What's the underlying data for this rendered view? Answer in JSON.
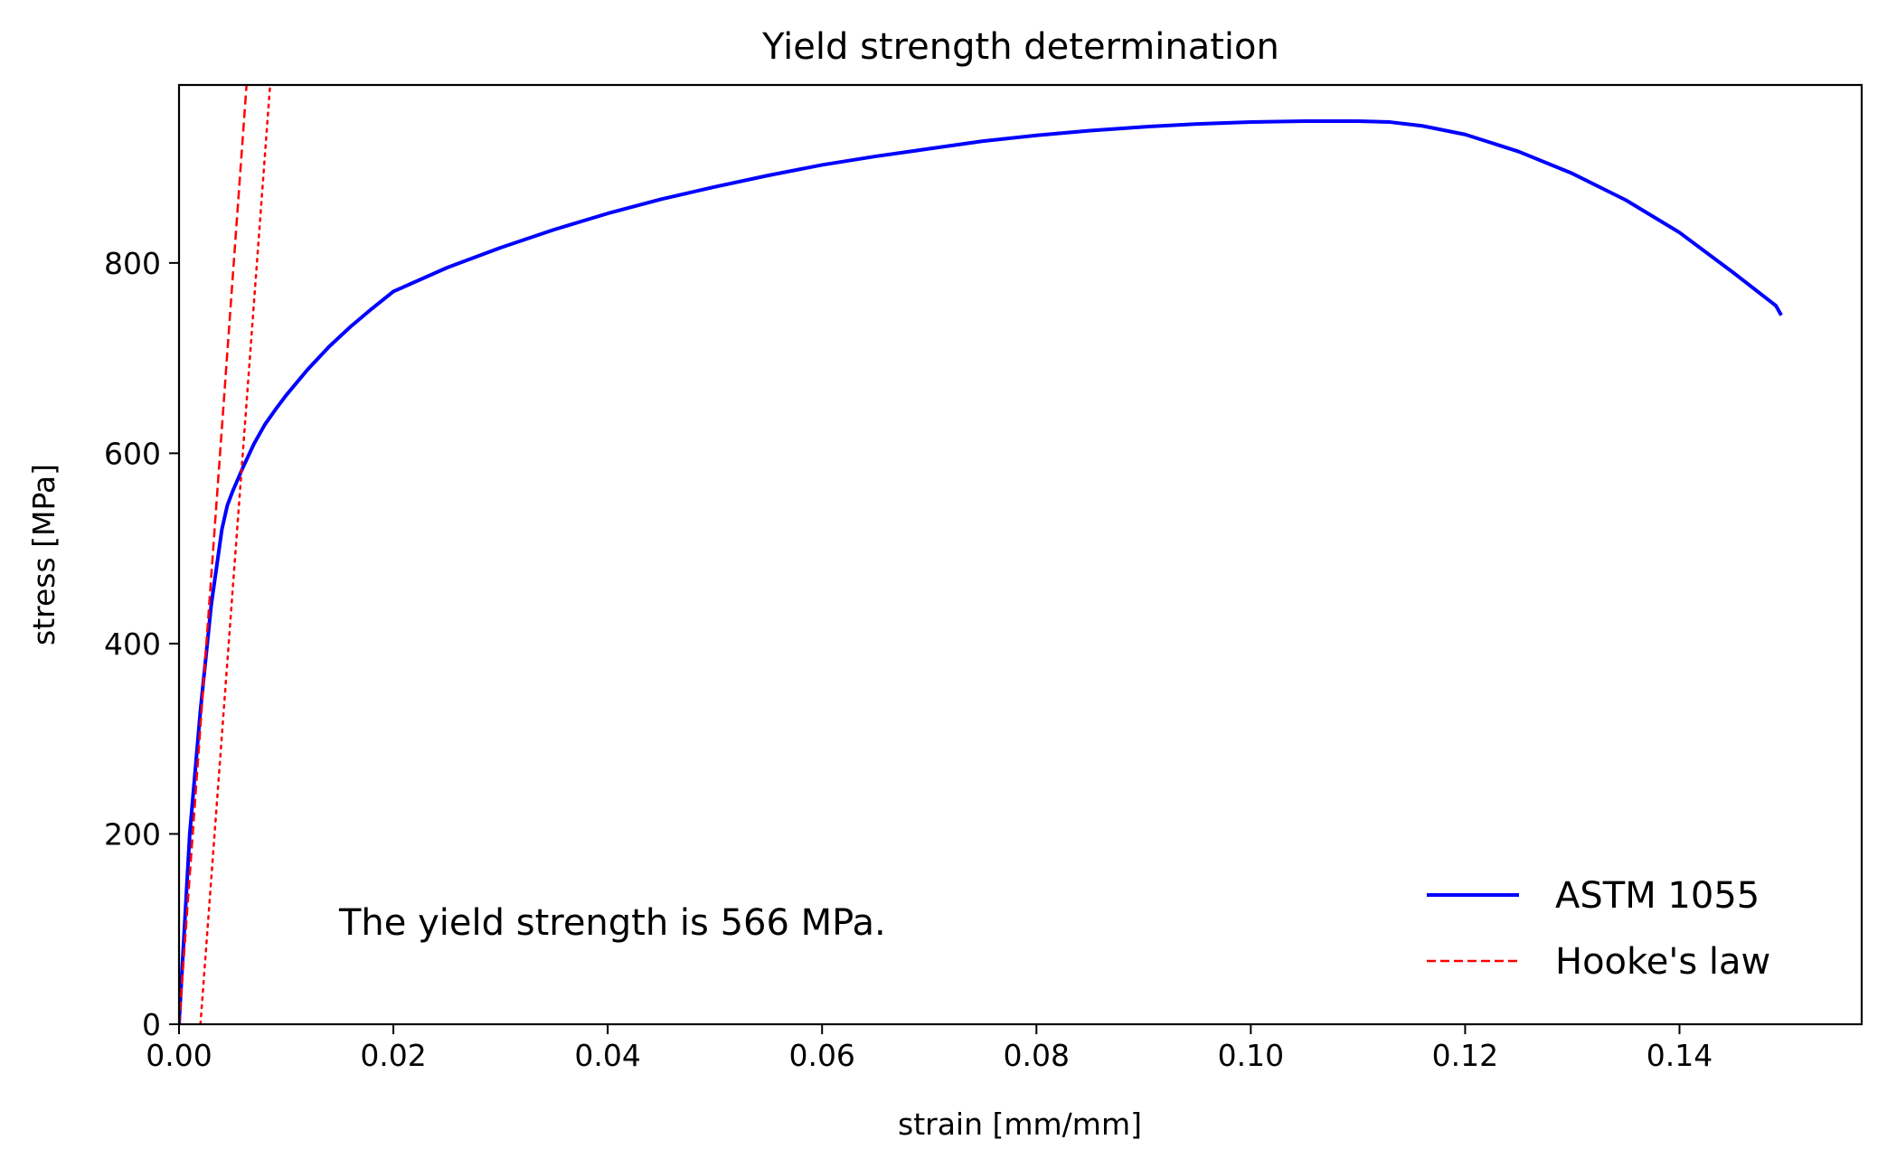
{
  "chart_data": {
    "type": "line",
    "title": "Yield strength determination",
    "xlabel": "strain [mm/mm]",
    "ylabel": "stress [MPa]",
    "xlim": [
      0,
      0.157
    ],
    "ylim": [
      0,
      987
    ],
    "x_scale": "linear",
    "y_scale": "linear",
    "grid": false,
    "legend_position": "bottom-right",
    "xticks": [
      0.0,
      0.02,
      0.04,
      0.06,
      0.08,
      0.1,
      0.12,
      0.14
    ],
    "xtick_labels": [
      "0.00",
      "0.02",
      "0.04",
      "0.06",
      "0.08",
      "0.10",
      "0.12",
      "0.14"
    ],
    "yticks": [
      0,
      200,
      400,
      600,
      800
    ],
    "ytick_labels": [
      "0",
      "200",
      "400",
      "600",
      "800"
    ],
    "annotation": "The yield strength is 566 MPa.",
    "series": [
      {
        "name": "ASTM 1055",
        "color": "#0000ff",
        "style": "solid",
        "x": [
          0,
          0.001,
          0.002,
          0.003,
          0.004,
          0.0045,
          0.005,
          0.006,
          0.007,
          0.008,
          0.009,
          0.01,
          0.012,
          0.014,
          0.016,
          0.018,
          0.02,
          0.025,
          0.03,
          0.035,
          0.04,
          0.045,
          0.05,
          0.055,
          0.06,
          0.065,
          0.07,
          0.075,
          0.08,
          0.085,
          0.09,
          0.095,
          0.1,
          0.105,
          0.11,
          0.113,
          0.116,
          0.12,
          0.125,
          0.13,
          0.135,
          0.14,
          0.145,
          0.149,
          0.1495
        ],
        "y": [
          0,
          200,
          330,
          440,
          520,
          545,
          560,
          586,
          610,
          630,
          646,
          661,
          688,
          712,
          733,
          752,
          770,
          795,
          816,
          835,
          852,
          867,
          880,
          892,
          903,
          912,
          920,
          928,
          934,
          939,
          943,
          946,
          948,
          949,
          949,
          948,
          944,
          935,
          917,
          894,
          866,
          832,
          790,
          755,
          745
        ]
      },
      {
        "name": "Hooke's law",
        "color": "#ff0000",
        "style": "dashed",
        "x": [
          0,
          0.0063
        ],
        "y": [
          0,
          987
        ]
      },
      {
        "name": "",
        "color": "#ff0000",
        "style": "dotted",
        "x": [
          0.002,
          0.0085
        ],
        "y": [
          0,
          987
        ]
      }
    ]
  }
}
